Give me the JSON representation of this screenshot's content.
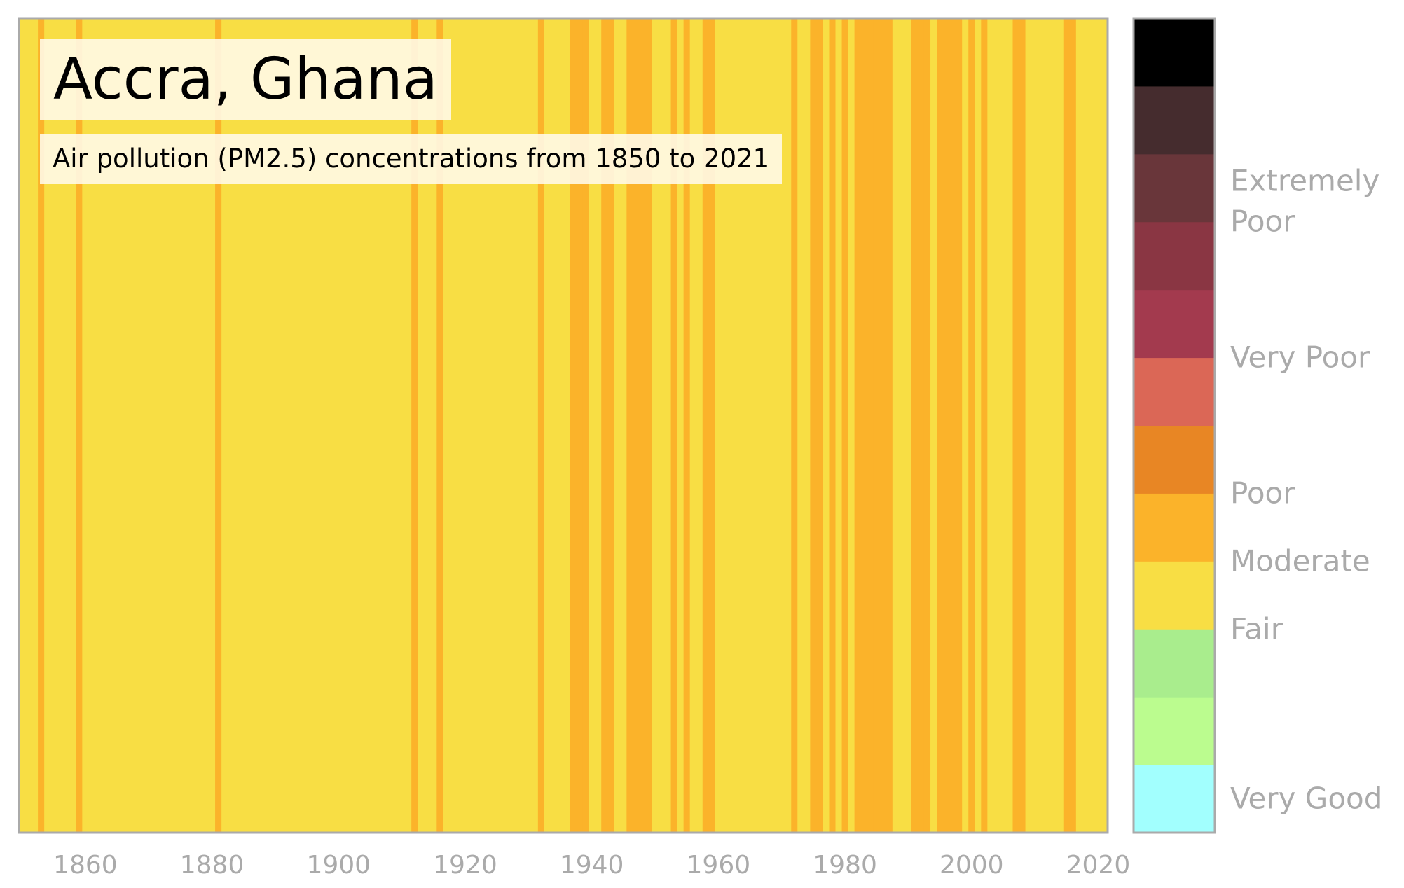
{
  "chart_data": {
    "type": "heatmap",
    "title": "Accra, Ghana",
    "subtitle": "Air pollution (PM2.5) concentrations from 1850 to 2021",
    "x_range": [
      1850,
      2021
    ],
    "x_ticks": [
      1860,
      1880,
      1900,
      1920,
      1940,
      1960,
      1980,
      2000,
      2020
    ],
    "default_category": "Fair",
    "moderate_year_ranges": [
      [
        1853,
        1853
      ],
      [
        1859,
        1859
      ],
      [
        1881,
        1881
      ],
      [
        1912,
        1912
      ],
      [
        1916,
        1916
      ],
      [
        1932,
        1932
      ],
      [
        1937,
        1939
      ],
      [
        1942,
        1943
      ],
      [
        1946,
        1949
      ],
      [
        1953,
        1953
      ],
      [
        1955,
        1955
      ],
      [
        1958,
        1959
      ],
      [
        1972,
        1972
      ],
      [
        1975,
        1976
      ],
      [
        1978,
        1978
      ],
      [
        1980,
        1980
      ],
      [
        1982,
        1987
      ],
      [
        1991,
        1993
      ],
      [
        1995,
        1998
      ],
      [
        2000,
        2000
      ],
      [
        2002,
        2002
      ],
      [
        2007,
        2008
      ],
      [
        2015,
        2016
      ]
    ],
    "colorbar": {
      "levels": [
        {
          "color": "#a2fffe"
        },
        {
          "color": "#bbfc8f"
        },
        {
          "color": "#a9ed8d"
        },
        {
          "color": "#f8de44"
        },
        {
          "color": "#fbb32a"
        },
        {
          "color": "#e88624"
        },
        {
          "color": "#db6756"
        },
        {
          "color": "#a33a4e"
        },
        {
          "color": "#8a3643"
        },
        {
          "color": "#69363a"
        },
        {
          "color": "#452c2e"
        },
        {
          "color": "#000000"
        }
      ],
      "labels": [
        {
          "text": "Very Good",
          "level": 0.5
        },
        {
          "text": "Fair",
          "level": 3.0
        },
        {
          "text": "Moderate",
          "level": 4.0
        },
        {
          "text": "Poor",
          "level": 5.0
        },
        {
          "text": "Very Poor",
          "level": 7.0
        },
        {
          "text": "Extremely Poor",
          "level": 9.3
        }
      ]
    },
    "colors": {
      "Fair": "#f8de44",
      "Moderate": "#fbb32a",
      "frame": "#aaaaaa"
    }
  }
}
